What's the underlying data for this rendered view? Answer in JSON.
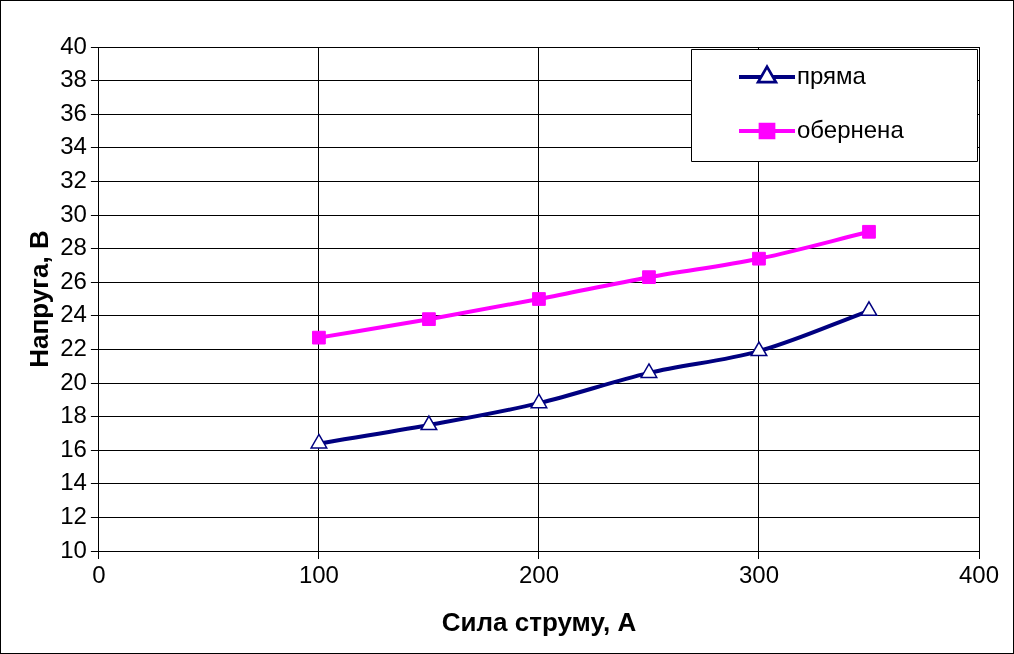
{
  "chart_data": {
    "type": "line",
    "xlabel": "Сила струму, А",
    "ylabel": "Напруга, В",
    "x": [
      100,
      150,
      200,
      250,
      300,
      350
    ],
    "series": [
      {
        "name": "пряма",
        "color": "#000080",
        "marker": "triangle",
        "values": [
          16.4,
          17.5,
          18.8,
          20.6,
          21.9,
          24.3
        ]
      },
      {
        "name": "обернена",
        "color": "#ff00ff",
        "marker": "square",
        "values": [
          22.7,
          23.8,
          25.0,
          26.3,
          27.4,
          29.0
        ]
      }
    ],
    "xlim": [
      0,
      400
    ],
    "xticks": [
      0,
      100,
      200,
      300,
      400
    ],
    "ylim": [
      10,
      40
    ],
    "yticks": [
      10,
      12,
      14,
      16,
      18,
      20,
      22,
      24,
      26,
      28,
      30,
      32,
      34,
      36,
      38,
      40
    ],
    "grid": true,
    "legend": "top right",
    "line_style": "solid"
  }
}
